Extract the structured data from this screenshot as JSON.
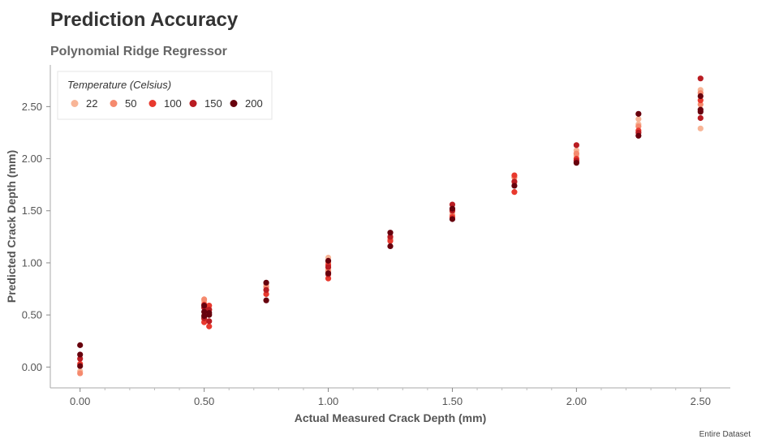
{
  "chart_data": {
    "type": "scatter",
    "title": "Prediction Accuracy",
    "subtitle": "Polynomial Ridge Regressor",
    "xlabel": "Actual Measured Crack Depth (mm)",
    "ylabel": "Predicted Crack Depth (mm)",
    "xlim": [
      -0.12,
      2.62
    ],
    "ylim": [
      -0.2,
      2.9
    ],
    "xticks": [
      "0.00",
      "0.50",
      "1.00",
      "1.50",
      "2.00",
      "2.50"
    ],
    "yticks": [
      "0.00",
      "0.50",
      "1.00",
      "1.50",
      "2.00",
      "2.50"
    ],
    "grid": false,
    "legend": {
      "title": "Temperature (Celsius)",
      "placement": "top-left"
    },
    "footnote": "Entire Dataset",
    "series": [
      {
        "name": "22",
        "color": "#f8b597",
        "x": [
          0.0,
          0.5,
          0.5,
          0.75,
          1.0,
          1.0,
          1.25,
          1.5,
          1.75,
          2.0,
          2.0,
          2.25,
          2.25,
          2.5,
          2.5
        ],
        "y": [
          -0.04,
          0.63,
          0.5,
          0.79,
          1.05,
          0.94,
          1.24,
          1.49,
          1.77,
          2.08,
          2.03,
          2.38,
          2.33,
          2.29,
          2.66
        ]
      },
      {
        "name": "50",
        "color": "#f58a6e",
        "x": [
          0.0,
          0.5,
          0.5,
          0.52,
          0.75,
          1.0,
          1.0,
          1.25,
          1.5,
          1.75,
          2.0,
          2.25,
          2.5,
          2.5
        ],
        "y": [
          -0.06,
          0.65,
          0.46,
          0.55,
          0.77,
          1.0,
          0.92,
          1.22,
          1.46,
          1.82,
          2.05,
          2.31,
          2.63,
          2.52
        ]
      },
      {
        "name": "100",
        "color": "#e8392e",
        "x": [
          0.0,
          0.5,
          0.5,
          0.52,
          0.52,
          0.75,
          1.0,
          1.0,
          1.25,
          1.5,
          1.5,
          1.75,
          1.75,
          2.0,
          2.25,
          2.5
        ],
        "y": [
          0.03,
          0.6,
          0.43,
          0.59,
          0.39,
          0.7,
          0.98,
          0.85,
          1.21,
          1.51,
          1.44,
          1.84,
          1.68,
          2.0,
          2.27,
          2.56
        ]
      },
      {
        "name": "150",
        "color": "#b91c22",
        "x": [
          0.0,
          0.5,
          0.5,
          0.52,
          0.52,
          0.75,
          1.0,
          1.0,
          1.25,
          1.5,
          1.5,
          1.75,
          2.0,
          2.0,
          2.25,
          2.5,
          2.5
        ],
        "y": [
          0.08,
          0.57,
          0.47,
          0.55,
          0.44,
          0.74,
          0.96,
          0.89,
          1.25,
          1.56,
          1.5,
          1.78,
          2.13,
          1.98,
          2.25,
          2.77,
          2.39
        ]
      },
      {
        "name": "200",
        "color": "#67000d",
        "x": [
          0.0,
          0.0,
          0.0,
          0.5,
          0.5,
          0.5,
          0.52,
          0.52,
          0.75,
          0.75,
          1.0,
          1.0,
          1.25,
          1.25,
          1.5,
          1.5,
          1.75,
          2.0,
          2.25,
          2.25,
          2.5,
          2.5,
          2.5
        ],
        "y": [
          0.21,
          0.12,
          0.01,
          0.59,
          0.53,
          0.49,
          0.52,
          0.5,
          0.64,
          0.81,
          1.02,
          0.9,
          1.29,
          1.16,
          1.52,
          1.42,
          1.74,
          1.96,
          2.43,
          2.22,
          2.47,
          2.45,
          2.6
        ]
      }
    ]
  }
}
